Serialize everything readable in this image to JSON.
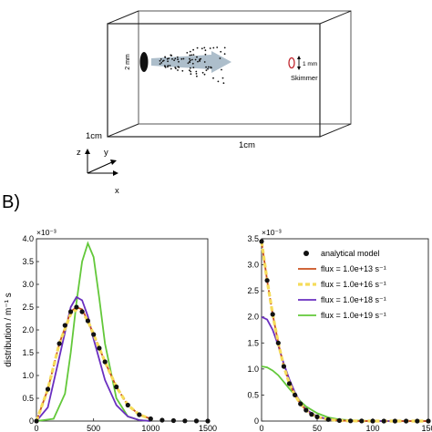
{
  "panel_a": {
    "label_1cm_left": "1cm",
    "label_1cm_bottom": "1cm",
    "label_2mm": "2 mm",
    "label_1mm": "1 mm",
    "label_skimmer": "Skimmer",
    "axis_z": "z",
    "axis_y": "y",
    "axis_x": "x"
  },
  "panel_b": {
    "label": "B)"
  },
  "colors": {
    "analytical": "#000000",
    "flux13": "#c9501e",
    "flux16": "#f5dc5a",
    "flux18": "#6a2fc0",
    "flux19": "#63c83a"
  },
  "chart_data": [
    {
      "type": "line",
      "ylabel": "distribution / m⁻¹ s",
      "exponent": "×10⁻³",
      "xlim": [
        0,
        1500
      ],
      "ylim": [
        0,
        4.0
      ],
      "xticks": [
        "0",
        "500",
        "1000",
        "1500"
      ],
      "yticks": [
        "0",
        "0.5",
        "1.0",
        "1.5",
        "2.0",
        "2.5",
        "3.0",
        "3.5",
        "4.0"
      ],
      "series": [
        {
          "key": "analytical",
          "x": [
            0,
            100,
            200,
            250,
            300,
            350,
            400,
            450,
            500,
            550,
            600,
            700,
            800,
            900,
            1000,
            1100,
            1200,
            1300,
            1400,
            1500
          ],
          "y": [
            0,
            0.7,
            1.7,
            2.1,
            2.4,
            2.5,
            2.4,
            2.2,
            1.9,
            1.6,
            1.3,
            0.75,
            0.35,
            0.14,
            0.05,
            0.02,
            0.01,
            0.005,
            0.002,
            0
          ]
        },
        {
          "key": "flux13",
          "x": [
            0,
            100,
            200,
            300,
            350,
            400,
            450,
            500,
            600,
            700,
            800,
            900,
            1000
          ],
          "y": [
            0,
            0.7,
            1.7,
            2.4,
            2.5,
            2.45,
            2.2,
            1.9,
            1.3,
            0.75,
            0.35,
            0.14,
            0.05
          ]
        },
        {
          "key": "flux16",
          "x": [
            0,
            100,
            200,
            300,
            350,
            400,
            450,
            500,
            600,
            700,
            800,
            900,
            1000
          ],
          "y": [
            0,
            0.7,
            1.7,
            2.35,
            2.45,
            2.4,
            2.2,
            1.9,
            1.3,
            0.75,
            0.35,
            0.14,
            0.05
          ]
        },
        {
          "key": "flux18",
          "x": [
            0,
            100,
            200,
            300,
            350,
            400,
            450,
            500,
            600,
            700,
            800,
            900,
            1000
          ],
          "y": [
            0,
            0.3,
            1.4,
            2.5,
            2.72,
            2.65,
            2.3,
            1.8,
            0.9,
            0.35,
            0.1,
            0.02,
            0
          ]
        },
        {
          "key": "flux19",
          "x": [
            0,
            150,
            250,
            300,
            350,
            400,
            450,
            500,
            550,
            600,
            700,
            800,
            900,
            1000
          ],
          "y": [
            0,
            0.05,
            0.6,
            1.5,
            2.6,
            3.5,
            3.9,
            3.6,
            2.7,
            1.7,
            0.5,
            0.1,
            0.02,
            0
          ]
        }
      ]
    },
    {
      "type": "line",
      "exponent": "×10⁻³",
      "xlim": [
        0,
        150
      ],
      "ylim": [
        0,
        3.5
      ],
      "xticks": [
        "0",
        "50",
        "100",
        "150"
      ],
      "yticks": [
        "0",
        "0.5",
        "1.0",
        "1.5",
        "2.0",
        "2.5",
        "3.0",
        "3.5"
      ],
      "legend": {
        "position": "top-right",
        "entries": [
          {
            "key": "analytical",
            "label": "analytical model",
            "kind": "marker"
          },
          {
            "key": "flux13",
            "label": "flux = 1.0e+13  s⁻¹",
            "kind": "line"
          },
          {
            "key": "flux16",
            "label": "flux = 1.0e+16  s⁻¹",
            "kind": "dash"
          },
          {
            "key": "flux18",
            "label": "flux = 1.0e+18  s⁻¹",
            "kind": "line"
          },
          {
            "key": "flux19",
            "label": "flux = 1.0e+19  s⁻¹",
            "kind": "line"
          }
        ]
      },
      "series": [
        {
          "key": "analytical",
          "x": [
            0,
            5,
            10,
            15,
            20,
            25,
            30,
            35,
            40,
            45,
            50,
            60,
            70,
            80,
            90,
            100,
            110,
            120,
            130,
            140,
            150
          ],
          "y": [
            3.45,
            2.7,
            2.05,
            1.5,
            1.05,
            0.72,
            0.5,
            0.33,
            0.21,
            0.13,
            0.08,
            0.03,
            0.01,
            0.004,
            0.001,
            0,
            0,
            0,
            0,
            0,
            0
          ]
        },
        {
          "key": "flux13",
          "x": [
            0,
            5,
            10,
            15,
            20,
            25,
            30,
            35,
            40,
            45,
            50,
            60,
            70,
            80,
            100,
            150
          ],
          "y": [
            3.45,
            2.7,
            2.05,
            1.5,
            1.05,
            0.72,
            0.5,
            0.33,
            0.21,
            0.13,
            0.08,
            0.03,
            0.01,
            0.004,
            0,
            0
          ]
        },
        {
          "key": "flux16",
          "x": [
            0,
            5,
            10,
            15,
            20,
            25,
            30,
            35,
            40,
            45,
            50,
            60,
            70,
            80,
            100,
            150
          ],
          "y": [
            3.45,
            2.7,
            2.05,
            1.5,
            1.05,
            0.72,
            0.5,
            0.33,
            0.21,
            0.13,
            0.08,
            0.03,
            0.01,
            0.004,
            0,
            0
          ]
        },
        {
          "key": "flux18",
          "x": [
            0,
            5,
            10,
            15,
            20,
            25,
            30,
            35,
            40,
            50,
            60,
            70,
            80,
            100,
            150
          ],
          "y": [
            2.0,
            1.95,
            1.75,
            1.45,
            1.1,
            0.8,
            0.55,
            0.35,
            0.22,
            0.09,
            0.03,
            0.01,
            0.004,
            0,
            0
          ]
        },
        {
          "key": "flux19",
          "x": [
            0,
            5,
            10,
            15,
            20,
            25,
            30,
            35,
            40,
            50,
            60,
            70,
            80,
            90,
            100,
            120,
            150
          ],
          "y": [
            1.05,
            1.03,
            0.97,
            0.88,
            0.75,
            0.62,
            0.5,
            0.38,
            0.28,
            0.15,
            0.07,
            0.03,
            0.015,
            0.006,
            0.002,
            0,
            0
          ]
        }
      ]
    }
  ]
}
